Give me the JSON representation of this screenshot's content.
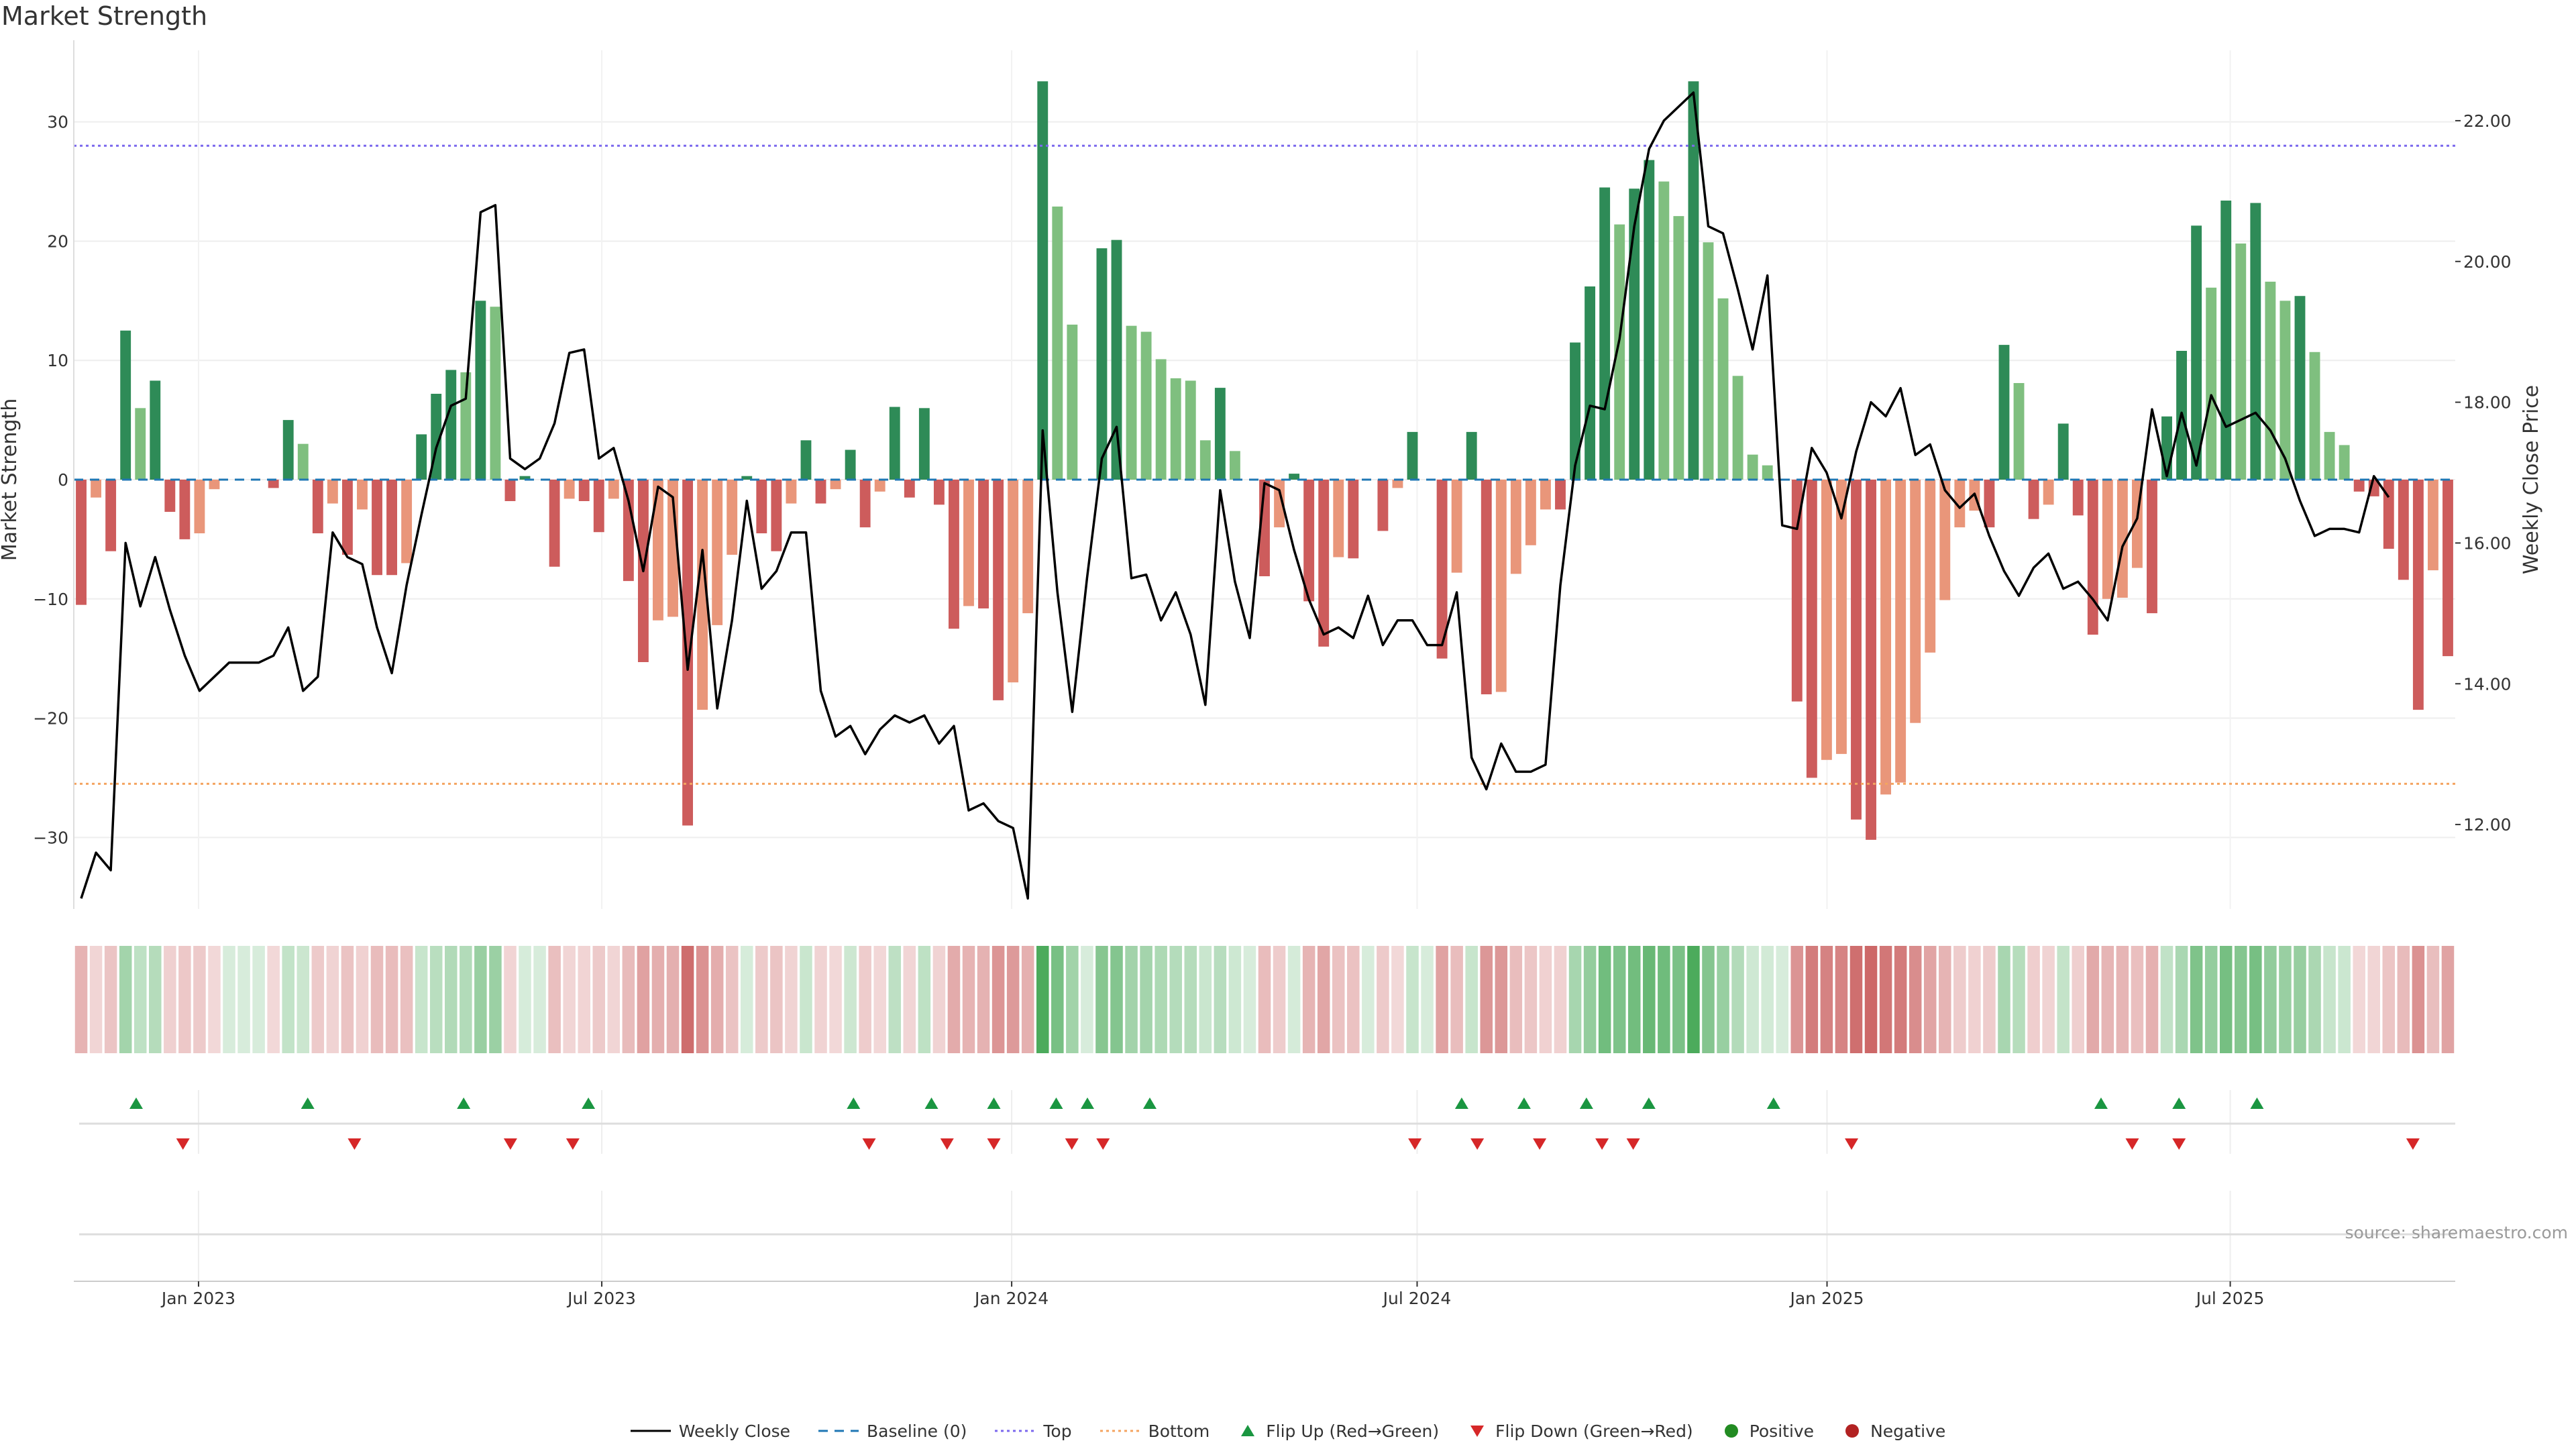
{
  "title": "Market Strength",
  "source": "source: sharemaestro.com",
  "colors": {
    "pos_dark": "#2e8b57",
    "pos_light": "#7fbf7f",
    "neg_dark": "#cd5c5c",
    "neg_light": "#e9967a",
    "price_line": "#000000",
    "baseline": "#1f77b4",
    "top_line": "#7b68ee",
    "bottom_line": "#f4a460",
    "flip_up": "#1a9641",
    "flip_down": "#d62728",
    "positive_dot": "#228b22",
    "negative_dot": "#b22222"
  },
  "legend": [
    {
      "key": "weekly_close",
      "label": "Weekly Close",
      "icon": "solid-line-icon"
    },
    {
      "key": "baseline",
      "label": "Baseline (0)",
      "icon": "dashed-line-icon"
    },
    {
      "key": "top",
      "label": "Top",
      "icon": "dotted-line-icon"
    },
    {
      "key": "bottom",
      "label": "Bottom",
      "icon": "dotted-line-icon"
    },
    {
      "key": "flip_up",
      "label": "Flip Up (Red→Green)",
      "icon": "triangle-up-icon"
    },
    {
      "key": "flip_down",
      "label": "Flip Down (Green→Red)",
      "icon": "triangle-down-icon"
    },
    {
      "key": "positive",
      "label": "Positive",
      "icon": "dot-icon"
    },
    {
      "key": "negative",
      "label": "Negative",
      "icon": "dot-icon"
    }
  ],
  "chart_data": {
    "type": "bar",
    "title": "Market Strength",
    "ylabel": "Market Strength",
    "y2label": "Weekly Close Price",
    "ylim": [
      -36,
      36
    ],
    "y2lim": [
      10.8,
      23.0
    ],
    "yticks": [
      -30,
      -20,
      -10,
      0,
      10,
      20,
      30
    ],
    "y2ticks": [
      12.0,
      14.0,
      16.0,
      18.0,
      20.0,
      22.0
    ],
    "x_start": "2022-11-06",
    "x_end": "2025-10-10",
    "xticks": [
      {
        "date": "2023-01-01",
        "label": "Jan 2023"
      },
      {
        "date": "2023-07-01",
        "label": "Jul 2023"
      },
      {
        "date": "2024-01-01",
        "label": "Jan 2024"
      },
      {
        "date": "2024-07-01",
        "label": "Jul 2024"
      },
      {
        "date": "2025-01-01",
        "label": "Jan 2025"
      },
      {
        "date": "2025-07-01",
        "label": "Jul 2025"
      }
    ],
    "top_level": 28,
    "bottom_level": -25.5,
    "baseline": 0,
    "strength": [
      -10.5,
      -1.5,
      -6,
      12.5,
      6,
      8.3,
      -2.7,
      -5,
      -4.5,
      -0.8,
      0,
      0,
      0,
      -0.7,
      5,
      3,
      -4.5,
      -2,
      -6.3,
      -2.5,
      -8,
      -8,
      -7,
      3.8,
      7.2,
      9.2,
      9,
      15,
      14.5,
      -1.8,
      0.3,
      0,
      -7.3,
      -1.6,
      -1.8,
      -4.4,
      -1.6,
      -8.5,
      -15.3,
      -11.8,
      -11.5,
      -29,
      -19.3,
      -12.2,
      -6.3,
      0.3,
      -4.5,
      -6,
      -2,
      3.3,
      -2,
      -0.8,
      2.5,
      -4,
      -1,
      6.1,
      -1.5,
      6,
      -2.1,
      -12.5,
      -10.6,
      -10.8,
      -18.5,
      -17,
      -11.2,
      33.4,
      22.9,
      13,
      0,
      19.4,
      20.1,
      12.9,
      12.4,
      10.1,
      8.5,
      8.3,
      3.3,
      7.7,
      2.4,
      0,
      -8.1,
      -4,
      0.5,
      -10.2,
      -14,
      -6.5,
      -6.6,
      0,
      -4.3,
      -0.7,
      4,
      0,
      -15,
      -7.8,
      4,
      -18,
      -17.8,
      -7.9,
      -5.5,
      -2.5,
      -2.5,
      11.5,
      16.2,
      24.5,
      21.4,
      24.4,
      26.8,
      25,
      22.1,
      33.4,
      19.9,
      15.2,
      8.7,
      2.1,
      1.2,
      0,
      -18.6,
      -25,
      -23.5,
      -23,
      -28.5,
      -30.2,
      -26.4,
      -25.4,
      -20.4,
      -14.5,
      -10.1,
      -4,
      -2.6,
      -4,
      11.3,
      8.1,
      -3.3,
      -2.1,
      4.7,
      -3,
      -13,
      -10,
      -9.9,
      -7.4,
      -11.2,
      5.3,
      10.8,
      21.3,
      16.1,
      23.4,
      19.8,
      23.2,
      16.6,
      15,
      15.4,
      10.7,
      4,
      2.9,
      -1,
      -1.4,
      -5.8,
      -8.4,
      -19.3,
      -7.6,
      -14.8
    ],
    "close": [
      10.95,
      11.6,
      11.35,
      16.0,
      15.1,
      15.8,
      15.05,
      14.4,
      13.9,
      14.1,
      14.3,
      14.3,
      14.3,
      14.4,
      14.8,
      13.9,
      14.1,
      16.15,
      15.8,
      15.7,
      14.8,
      14.15,
      15.4,
      16.4,
      17.35,
      17.95,
      18.05,
      20.7,
      20.8,
      17.2,
      17.05,
      17.2,
      17.7,
      18.7,
      18.75,
      17.2,
      17.35,
      16.6,
      15.6,
      16.8,
      16.65,
      14.2,
      15.9,
      13.65,
      14.9,
      16.6,
      15.35,
      15.6,
      16.15,
      16.15,
      13.9,
      13.25,
      13.4,
      13.0,
      13.35,
      13.55,
      13.45,
      13.55,
      13.15,
      13.4,
      12.2,
      12.3,
      12.05,
      11.95,
      10.95,
      17.6,
      15.3,
      13.6,
      15.5,
      17.2,
      17.65,
      15.5,
      15.55,
      14.9,
      15.3,
      14.7,
      13.7,
      16.75,
      15.45,
      14.65,
      16.85,
      16.75,
      15.9,
      15.2,
      14.7,
      14.8,
      14.65,
      15.25,
      14.55,
      14.9,
      14.9,
      14.55,
      14.55,
      15.3,
      12.95,
      12.5,
      13.15,
      12.75,
      12.75,
      12.85,
      15.4,
      17.1,
      17.95,
      17.9,
      18.9,
      20.5,
      21.6,
      22.0,
      22.2,
      22.4,
      20.5,
      20.4,
      19.6,
      18.75,
      19.8,
      16.25,
      16.2,
      17.35,
      17.0,
      16.35,
      17.3,
      18.0,
      17.8,
      18.2,
      17.25,
      17.4,
      16.75,
      16.5,
      16.7,
      16.1,
      15.6,
      15.25,
      15.65,
      15.85,
      15.35,
      15.45,
      15.2,
      14.9,
      15.95,
      16.35,
      17.9,
      16.95,
      17.85,
      17.1,
      18.1,
      17.65,
      17.75,
      17.85,
      17.6,
      17.2,
      16.6,
      16.1,
      16.2,
      16.2,
      16.15,
      16.95,
      16.65
    ],
    "flips_up": [
      "2022-12-04",
      "2023-02-19",
      "2023-04-30",
      "2023-06-25",
      "2023-10-22",
      "2023-11-26",
      "2023-12-24",
      "2024-01-21",
      "2024-02-04",
      "2024-03-03",
      "2024-07-21",
      "2024-08-18",
      "2024-09-15",
      "2024-10-13",
      "2024-12-08",
      "2025-05-04",
      "2025-06-08",
      "2025-07-13"
    ],
    "flips_down": [
      "2022-12-25",
      "2023-03-12",
      "2023-05-21",
      "2023-06-18",
      "2023-10-29",
      "2023-12-03",
      "2023-12-24",
      "2024-01-28",
      "2024-02-11",
      "2024-06-30",
      "2024-07-28",
      "2024-08-25",
      "2024-09-22",
      "2024-10-06",
      "2025-01-12",
      "2025-05-18",
      "2025-06-08",
      "2025-09-21"
    ]
  }
}
